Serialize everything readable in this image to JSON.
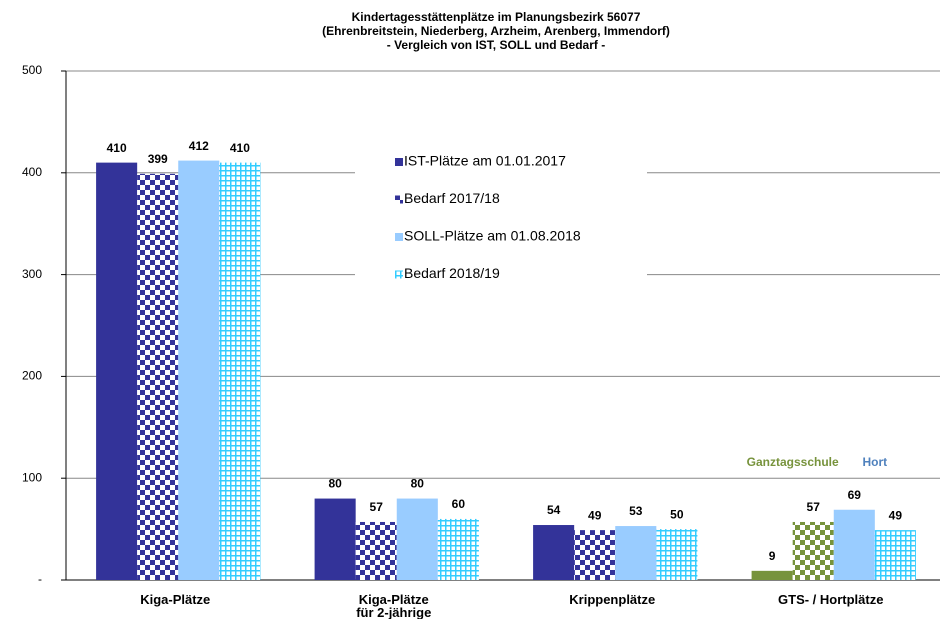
{
  "chart_data": {
    "type": "bar",
    "title": "Kindertagesstättenplätze im Planungsbezirk 56077\n(Ehrenbreitstein, Niederberg, Arzheim, Arenberg, Immendorf)\n- Vergleich von IST, SOLL und Bedarf -",
    "categories": [
      "Kiga-Plätze",
      "Kiga-Plätze\nfür 2-jährige",
      "Krippenplätze",
      "GTS- / Hortplätze"
    ],
    "series": [
      {
        "name": "IST-Plätze am 01.01.2017",
        "color": "#333399",
        "colors": [
          "#333399",
          "#333399",
          "#333399",
          "#77933c"
        ],
        "pattern": "solid",
        "values": [
          410,
          80,
          54,
          9
        ]
      },
      {
        "name": "Bedarf 2017/18",
        "color": "#333399",
        "colors": [
          "#333399",
          "#333399",
          "#333399",
          "#77933c"
        ],
        "pattern": "checker",
        "values": [
          399,
          57,
          49,
          57
        ]
      },
      {
        "name": "SOLL-Plätze am 01.08.2018",
        "color": "#99ccff",
        "colors": [
          "#99ccff",
          "#99ccff",
          "#99ccff",
          "#99ccff"
        ],
        "pattern": "solid",
        "values": [
          412,
          80,
          53,
          69
        ]
      },
      {
        "name": "Bedarf 2018/19",
        "color": "#33ccff",
        "colors": [
          "#33ccff",
          "#33ccff",
          "#33ccff",
          "#33ccff"
        ],
        "pattern": "grid",
        "values": [
          410,
          60,
          50,
          49
        ]
      }
    ],
    "annotations": [
      {
        "text": "Ganztagsschule",
        "color": "#77933c"
      },
      {
        "text": "Hort",
        "color": "#4f81bd"
      }
    ],
    "ylim": [
      0,
      500
    ],
    "yticks": [
      {
        "value": 0,
        "label": "-"
      },
      100,
      200,
      300,
      400,
      500
    ],
    "grid": true
  }
}
